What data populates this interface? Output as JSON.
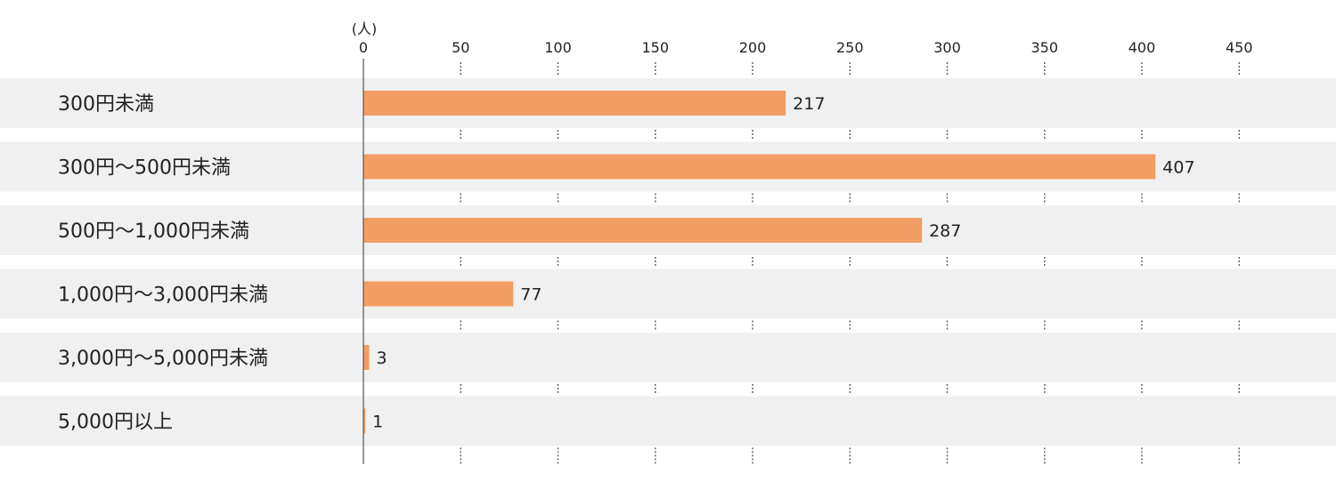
{
  "chart_data": {
    "type": "bar",
    "orientation": "horizontal",
    "unit_label": "(人)",
    "categories": [
      "300円未満",
      "300円～500円未満",
      "500円～1,000円未満",
      "1,000円～3,000円未満",
      "3,000円～5,000円未満",
      "5,000円以上"
    ],
    "values": [
      217,
      407,
      287,
      77,
      3,
      1
    ],
    "xlim": [
      0,
      450
    ],
    "ticks": [
      "0",
      "50",
      "100",
      "150",
      "200",
      "250",
      "300",
      "350",
      "400",
      "450"
    ],
    "tick_values": [
      0,
      50,
      100,
      150,
      200,
      250,
      300,
      350,
      400,
      450
    ],
    "axis_position": "top",
    "grid": "dotted vertical",
    "legend": "none",
    "colors": {
      "bar": "#f29d63",
      "row_band": "#f0f0f0",
      "axis": "#555555",
      "grid": "#666666",
      "text": "#222222"
    }
  }
}
